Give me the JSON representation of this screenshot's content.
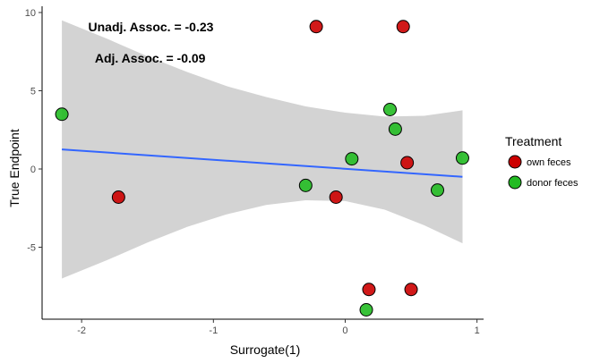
{
  "chart_data": {
    "type": "scatter",
    "xlabel": "Surrogate(1)",
    "ylabel": "True Endpoint",
    "xlim": [
      -2.3,
      1.05
    ],
    "ylim": [
      -9.6,
      10.4
    ],
    "x_ticks": [
      -2,
      -1,
      0,
      1
    ],
    "y_ticks": [
      -5,
      0,
      5,
      10
    ],
    "x_tick_labels": [
      "-2",
      "-1",
      "0",
      "1"
    ],
    "y_tick_labels": [
      "-5",
      "0",
      "5",
      "10"
    ],
    "grid": false,
    "annotations": [
      {
        "text": "Unadj. Assoc. = -0.23",
        "x": -1.95,
        "y": 8.8
      },
      {
        "text": "Adj. Assoc. = -0.09",
        "x": -1.9,
        "y": 6.8
      }
    ],
    "regression_line": {
      "color": "#3366ff",
      "x": [
        -2.15,
        0.89
      ],
      "y": [
        1.25,
        -0.5
      ]
    },
    "confidence_band": {
      "color": "#d3d3d3",
      "x": [
        -2.15,
        -1.8,
        -1.5,
        -1.2,
        -0.9,
        -0.6,
        -0.3,
        0.0,
        0.3,
        0.6,
        0.89
      ],
      "upper": [
        9.5,
        8.3,
        7.2,
        6.2,
        5.3,
        4.6,
        4.0,
        3.6,
        3.35,
        3.4,
        3.75
      ],
      "lower": [
        -7.0,
        -5.8,
        -4.7,
        -3.7,
        -2.9,
        -2.3,
        -2.0,
        -2.05,
        -2.6,
        -3.6,
        -4.75
      ]
    },
    "legend": {
      "title": "Treatment",
      "position": "right",
      "entries": [
        {
          "label": "own feces",
          "color": "#cc0000"
        },
        {
          "label": "donor feces",
          "color": "#22bb22"
        }
      ]
    },
    "series": [
      {
        "name": "own feces",
        "color": "#cc0000",
        "points": [
          {
            "x": -0.22,
            "y": 9.1
          },
          {
            "x": 0.44,
            "y": 9.1
          },
          {
            "x": 0.18,
            "y": -7.7
          },
          {
            "x": 0.5,
            "y": -7.7
          },
          {
            "x": -1.72,
            "y": -1.8
          },
          {
            "x": -0.07,
            "y": -1.8
          },
          {
            "x": 0.47,
            "y": 0.4
          }
        ]
      },
      {
        "name": "donor feces",
        "color": "#22bb22",
        "points": [
          {
            "x": -2.15,
            "y": 3.5
          },
          {
            "x": 0.34,
            "y": 3.8
          },
          {
            "x": 0.38,
            "y": 2.55
          },
          {
            "x": 0.05,
            "y": 0.65
          },
          {
            "x": 0.89,
            "y": 0.7
          },
          {
            "x": -0.3,
            "y": -1.05
          },
          {
            "x": 0.7,
            "y": -1.35
          },
          {
            "x": 0.16,
            "y": -9.0
          }
        ]
      }
    ]
  }
}
